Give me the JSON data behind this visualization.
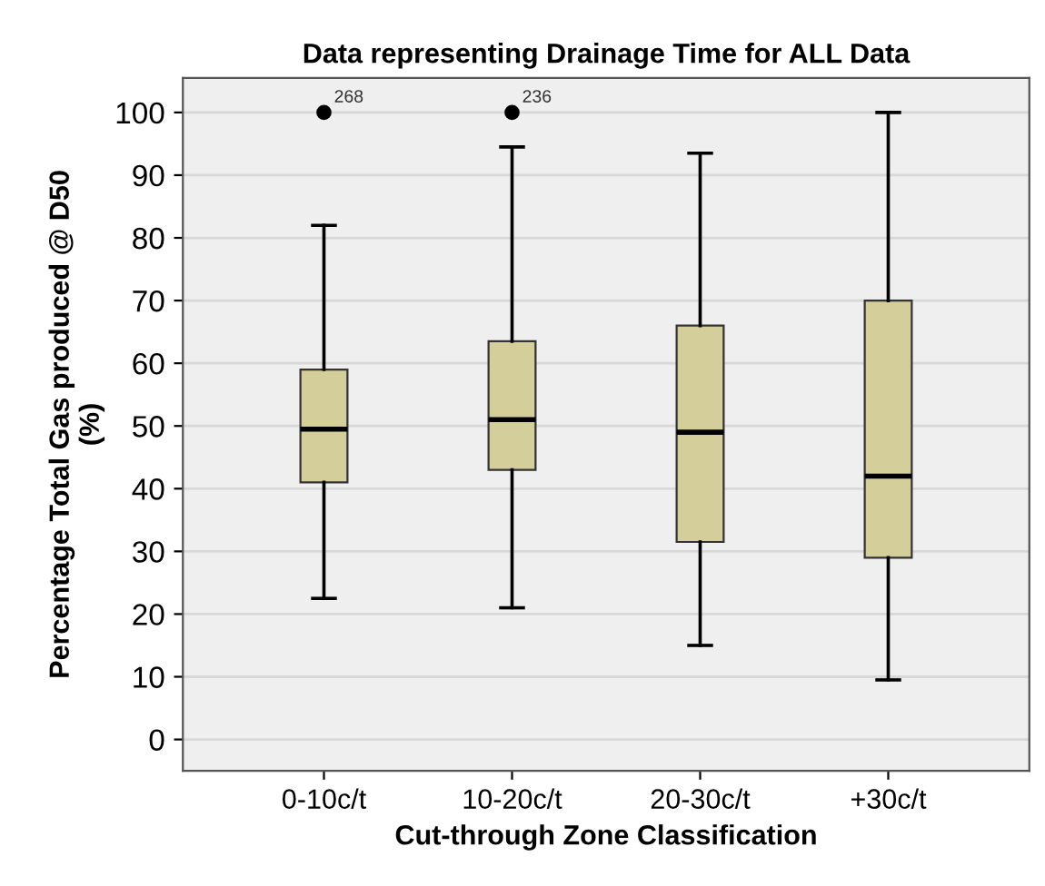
{
  "chart_data": {
    "type": "box",
    "title": "Data representing Drainage Time for ALL Data",
    "xlabel": "Cut-through Zone Classification",
    "ylabel": "Percentage Total Gas produced @ D50\n(%)",
    "categories": [
      "0-10c/t",
      "10-20c/t",
      "20-30c/t",
      "+30c/t"
    ],
    "color": "#d3ce9a",
    "boxes": [
      {
        "low": 22.5,
        "q1": 41,
        "median": 49.5,
        "q3": 59,
        "high": 82,
        "outliers": [
          100
        ]
      },
      {
        "low": 21,
        "q1": 43,
        "median": 51,
        "q3": 63.5,
        "high": 94.5,
        "outliers": [
          100
        ]
      },
      {
        "low": 15,
        "q1": 31.5,
        "median": 49,
        "q3": 66,
        "high": 93.5
      },
      {
        "low": 9.5,
        "q1": 29,
        "median": 42,
        "q3": 70,
        "high": 100
      }
    ],
    "annotations": [
      "268",
      "236"
    ],
    "ylim": [
      -5,
      105.5
    ],
    "yticks": [
      0,
      10,
      20,
      30,
      40,
      50,
      60,
      70,
      80,
      90,
      100
    ],
    "grid": "y"
  }
}
